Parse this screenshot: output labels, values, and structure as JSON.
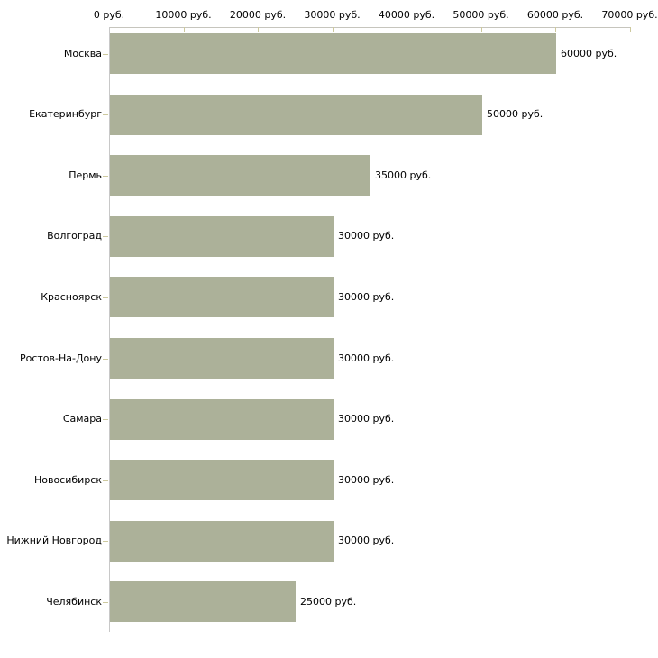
{
  "chart_data": {
    "type": "bar",
    "orientation": "horizontal",
    "title": "",
    "xlabel": "",
    "ylabel": "",
    "unit": "руб.",
    "categories": [
      "Москва",
      "Екатеринбург",
      "Пермь",
      "Волгоград",
      "Красноярск",
      "Ростов-На-Дону",
      "Самара",
      "Новосибирск",
      "Нижний Новгород",
      "Челябинск"
    ],
    "values": [
      60000,
      50000,
      35000,
      30000,
      30000,
      30000,
      30000,
      30000,
      30000,
      25000
    ],
    "value_labels": [
      "60000 руб.",
      "50000 руб.",
      "35000 руб.",
      "30000 руб.",
      "30000 руб.",
      "30000 руб.",
      "30000 руб.",
      "30000 руб.",
      "30000 руб.",
      "25000 руб."
    ],
    "x_axis": {
      "position": "top",
      "range": [
        0,
        70000
      ],
      "ticks": [
        0,
        10000,
        20000,
        30000,
        40000,
        50000,
        60000,
        70000
      ],
      "tick_labels": [
        "0 руб.",
        "10000 руб.",
        "20000 руб.",
        "30000 руб.",
        "40000 руб.",
        "50000 руб.",
        "60000 руб.",
        "70000 руб."
      ]
    },
    "grid": false,
    "legend": false,
    "colors": {
      "bar": "#acb199",
      "x_axis_line": "#c6c5bd",
      "x_tick_mark": "#cdc99e",
      "y_axis_line": "#c8c8c8",
      "category_tick": "#cdc99e",
      "text": "#000000",
      "background": "#ffffff"
    }
  }
}
